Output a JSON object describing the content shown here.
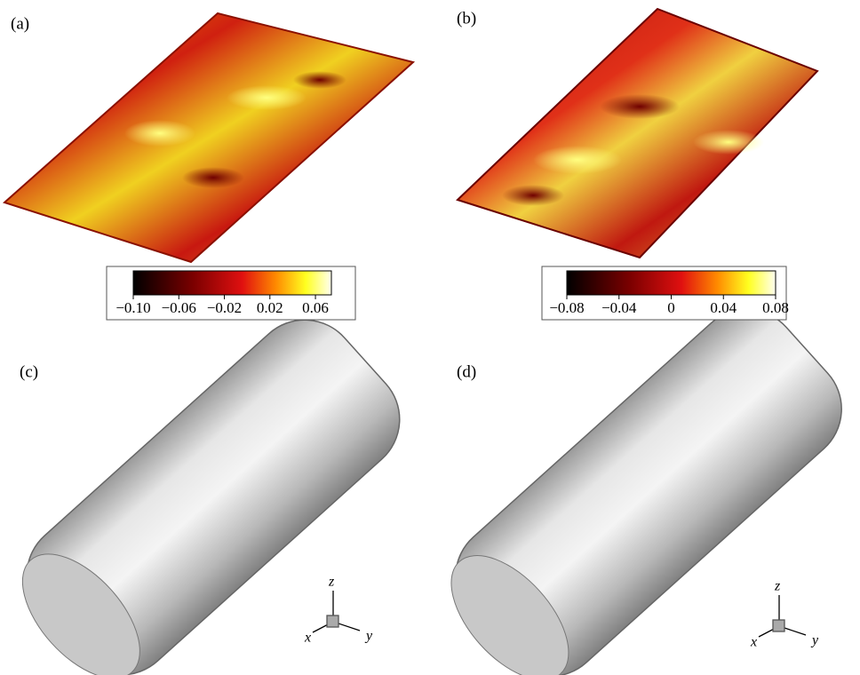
{
  "panels": [
    {
      "label": "(a)",
      "colorbar": {
        "lim": [
          -0.1,
          0.074
        ],
        "ticks": [
          {
            "value": -0.1,
            "label": "−0.10"
          },
          {
            "value": -0.06,
            "label": "−0.06"
          },
          {
            "value": -0.02,
            "label": "−0.02"
          },
          0.02,
          0.06
        ]
      }
    },
    {
      "label": "(b)",
      "colorbar": {
        "lim": [
          -0.08,
          0.08
        ],
        "ticks": [
          {
            "value": -0.08,
            "label": "−0.08"
          },
          {
            "value": -0.04,
            "label": "−0.04"
          },
          0,
          0.04,
          0.08
        ]
      }
    },
    {
      "label": "(c)",
      "axes": [
        "x",
        "y",
        "z"
      ]
    },
    {
      "label": "(d)",
      "axes": [
        "x",
        "y",
        "z"
      ]
    }
  ]
}
